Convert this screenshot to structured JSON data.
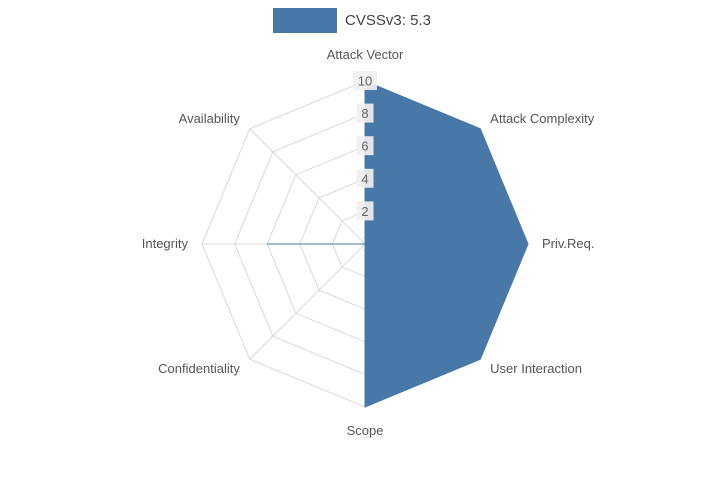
{
  "legend": {
    "label": "CVSSv3: 5.3"
  },
  "chart_data": {
    "type": "radar",
    "title": "CVSSv3: 5.3",
    "categories": [
      "Attack Vector",
      "Attack Complexity",
      "Priv.Req.",
      "User Interaction",
      "Scope",
      "Confidentiality",
      "Integrity",
      "Availability"
    ],
    "series": [
      {
        "name": "CVSSv3: 5.3",
        "values": [
          10,
          10,
          10,
          10,
          10,
          0,
          6,
          0
        ],
        "color": "#4878a8"
      }
    ],
    "rmax": 10,
    "ticks": [
      2,
      4,
      6,
      8,
      10
    ],
    "grid": true,
    "legend_position": "top",
    "colors": {
      "fill": "#4878a8",
      "grid_line": "#d9d9d9",
      "axis_label": "#555555",
      "tick_label": "#666666",
      "tick_box": "#f0f0f0",
      "background": "#ffffff"
    }
  }
}
